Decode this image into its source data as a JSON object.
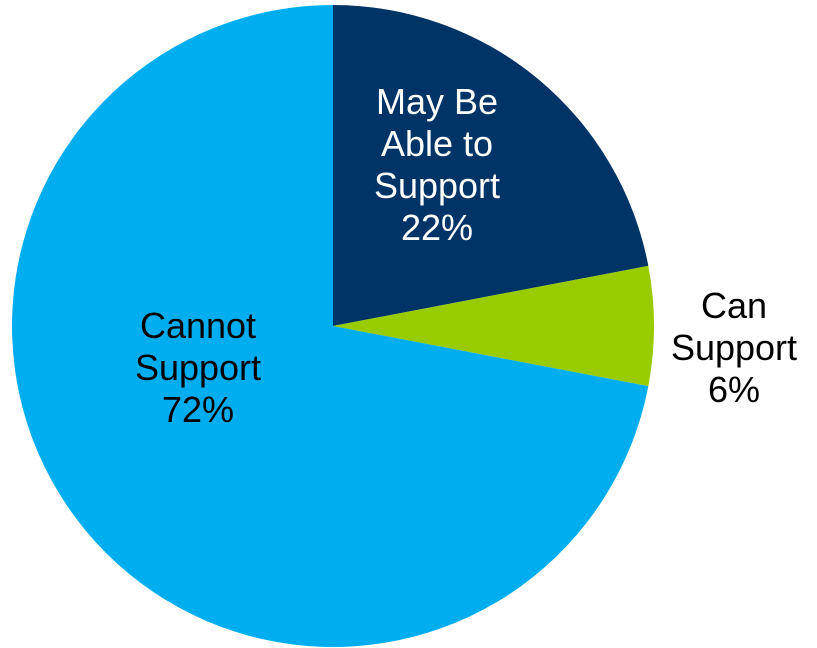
{
  "chart_data": {
    "type": "pie",
    "title": "",
    "slices": [
      {
        "label_lines": [
          "May Be",
          "Able to",
          "Support"
        ],
        "value": 22,
        "value_text": "22%",
        "color": "#003366",
        "label_color": "#ffffff"
      },
      {
        "label_lines": [
          "Can",
          "Support"
        ],
        "value": 6,
        "value_text": "6%",
        "color": "#99cc00",
        "label_color": "#000000"
      },
      {
        "label_lines": [
          "Cannot",
          "Support"
        ],
        "value": 72,
        "value_text": "72%",
        "color": "#00aeef",
        "label_color": "#000000"
      }
    ],
    "start_angle": "12 o'clock",
    "direction": "clockwise",
    "legend": "none"
  }
}
